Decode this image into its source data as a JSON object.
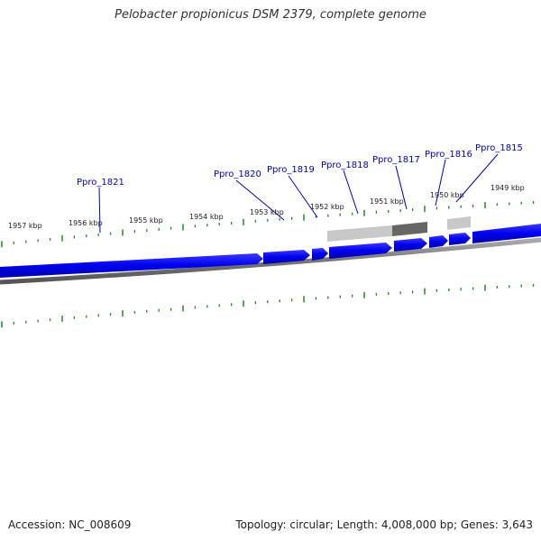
{
  "title": "Pelobacter propionicus DSM 2379, complete genome",
  "footer": {
    "accession": "Accession: NC_008609",
    "summary": "Topology: circular; Length: 4,008,000 bp; Genes: 3,643"
  },
  "colors": {
    "gene_strand": "#0000ee",
    "genome_backbone": "#777777",
    "tick": "#1f8a1f",
    "label": "#0000c8",
    "feature_light": "#c4c4c4",
    "feature_dark": "#666666"
  },
  "kbp_labels": [
    "1957 kbp",
    "1956 kbp",
    "1955 kbp",
    "1954 kbp",
    "1953 kbp",
    "1952 kbp",
    "1951 kbp",
    "1950 kbp",
    "1949 kbp"
  ],
  "genes": [
    {
      "name": "Ppro_1821"
    },
    {
      "name": "Ppro_1820"
    },
    {
      "name": "Ppro_1819"
    },
    {
      "name": "Ppro_1818"
    },
    {
      "name": "Ppro_1817"
    },
    {
      "name": "Ppro_1816"
    },
    {
      "name": "Ppro_1815"
    }
  ]
}
